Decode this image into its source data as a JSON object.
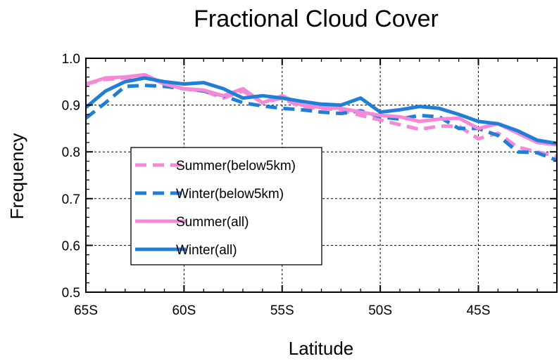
{
  "chart_data": {
    "type": "line",
    "title": "Fractional Cloud Cover",
    "xlabel": "Latitude",
    "ylabel": "Frequency",
    "xlim": [
      -65,
      -41
    ],
    "ylim": [
      0.5,
      1.0
    ],
    "grid": true,
    "legend_position": "lower-left",
    "x_ticks": [
      -65,
      -60,
      -55,
      -50,
      -45
    ],
    "x_tick_labels": [
      "65S",
      "60S",
      "55S",
      "50S",
      "45S"
    ],
    "y_ticks": [
      0.5,
      0.6,
      0.7,
      0.8,
      0.9,
      1.0
    ],
    "y_tick_labels": [
      "0.5",
      "0.6",
      "0.7",
      "0.8",
      "0.9",
      "1.0"
    ],
    "x": [
      -65,
      -64,
      -63,
      -62,
      -61,
      -60,
      -59,
      -58,
      -57,
      -56,
      -55,
      -54,
      -53,
      -52,
      -51,
      -50,
      -49,
      -48,
      -47,
      -46,
      -45,
      -44,
      -43,
      -42,
      -41
    ],
    "series": [
      {
        "name": "Summer(below5km)",
        "color": "#f589d7",
        "dash": "dashed",
        "values": [
          0.945,
          0.955,
          0.958,
          0.962,
          0.945,
          0.935,
          0.93,
          0.915,
          0.93,
          0.905,
          0.915,
          0.895,
          0.893,
          0.89,
          0.878,
          0.868,
          0.858,
          0.848,
          0.855,
          0.855,
          0.828,
          0.84,
          0.81,
          0.8,
          0.79
        ]
      },
      {
        "name": "Winter(below5km)",
        "color": "#1f7fd8",
        "dash": "dashed",
        "values": [
          0.872,
          0.905,
          0.94,
          0.942,
          0.94,
          0.935,
          0.93,
          0.92,
          0.905,
          0.898,
          0.893,
          0.89,
          0.885,
          0.882,
          0.888,
          0.875,
          0.87,
          0.878,
          0.875,
          0.85,
          0.85,
          0.835,
          0.8,
          0.798,
          0.782
        ]
      },
      {
        "name": "Summer(all)",
        "color": "#f589d7",
        "dash": "solid",
        "values": [
          0.945,
          0.958,
          0.96,
          0.965,
          0.945,
          0.935,
          0.932,
          0.92,
          0.935,
          0.905,
          0.92,
          0.9,
          0.895,
          0.893,
          0.885,
          0.878,
          0.875,
          0.865,
          0.87,
          0.872,
          0.85,
          0.86,
          0.84,
          0.82,
          0.815
        ]
      },
      {
        "name": "Winter(all)",
        "color": "#1f7fd8",
        "dash": "solid",
        "values": [
          0.895,
          0.93,
          0.95,
          0.958,
          0.95,
          0.945,
          0.948,
          0.935,
          0.915,
          0.92,
          0.915,
          0.908,
          0.902,
          0.9,
          0.915,
          0.885,
          0.89,
          0.897,
          0.893,
          0.88,
          0.865,
          0.86,
          0.845,
          0.825,
          0.818
        ]
      }
    ]
  }
}
